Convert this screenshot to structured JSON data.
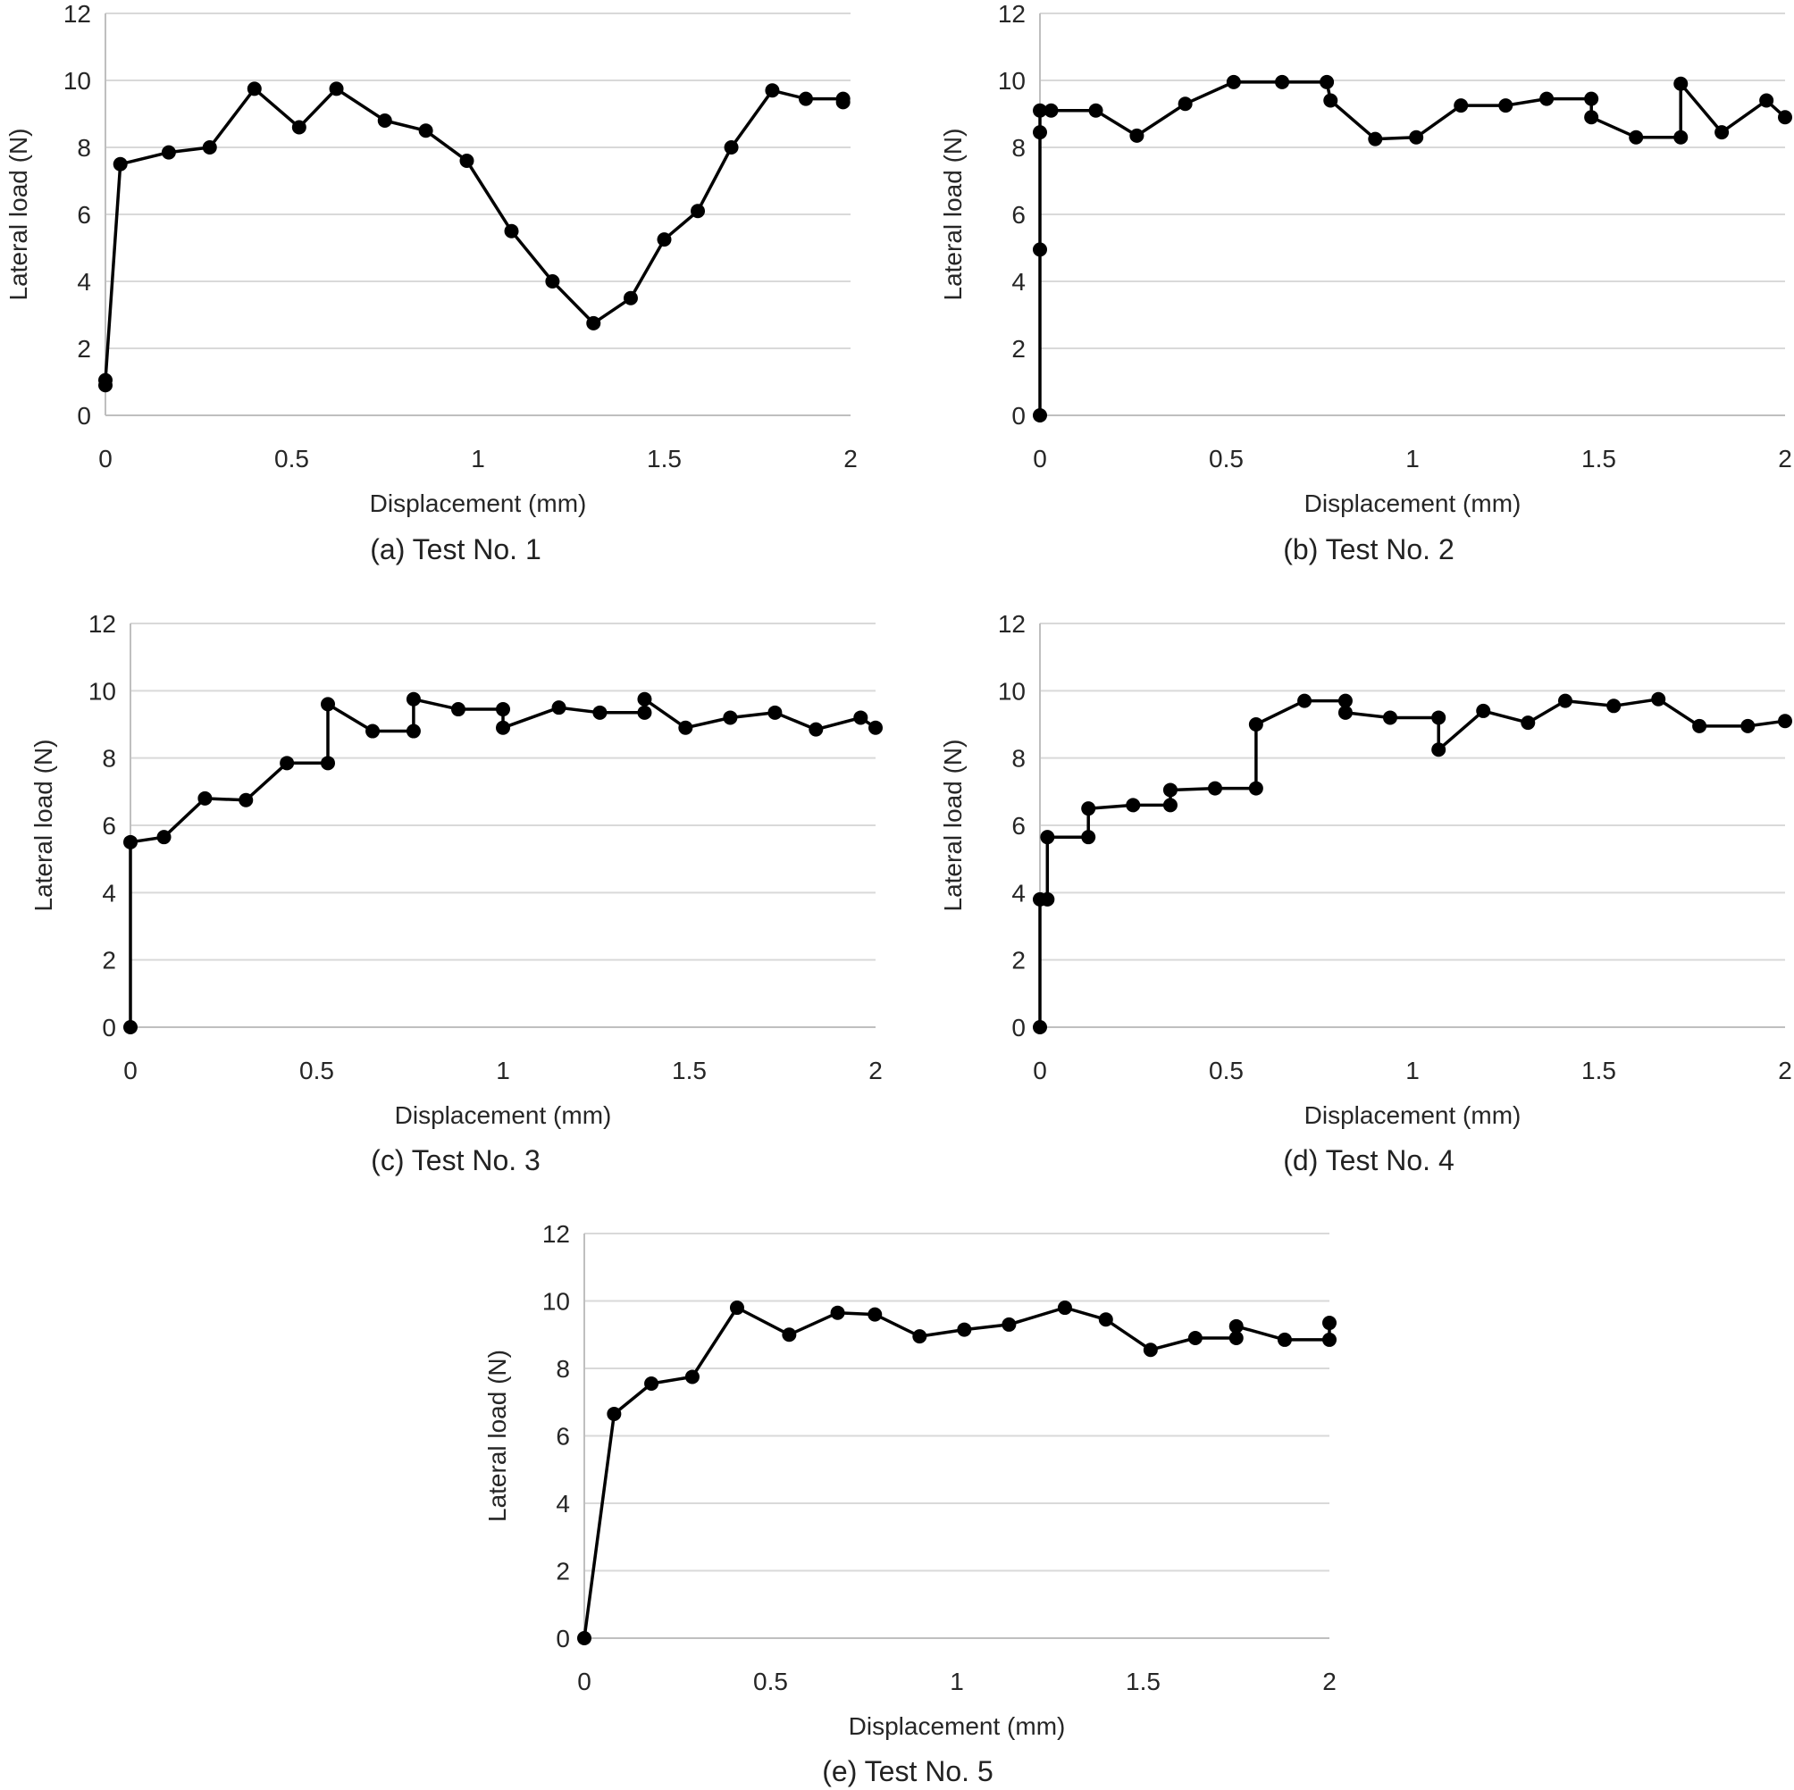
{
  "chart_data": [
    {
      "type": "scatter",
      "caption": "(a) Test No. 1",
      "xlabel": "Displacement (mm)",
      "ylabel": "Lateral load (N)",
      "xlim": [
        0,
        2
      ],
      "ylim": [
        0,
        12
      ],
      "xticks": [
        "0",
        "0.5",
        "1",
        "1.5",
        "2"
      ],
      "yticks": [
        "0",
        "2",
        "4",
        "6",
        "8",
        "10",
        "12"
      ],
      "grid": true,
      "points": [
        [
          0,
          0.9
        ],
        [
          0,
          1.05
        ],
        [
          0.04,
          7.5
        ],
        [
          0.17,
          7.85
        ],
        [
          0.28,
          8.0
        ],
        [
          0.4,
          9.75
        ],
        [
          0.52,
          8.6
        ],
        [
          0.62,
          9.75
        ],
        [
          0.75,
          8.8
        ],
        [
          0.86,
          8.5
        ],
        [
          0.97,
          7.6
        ],
        [
          1.09,
          5.5
        ],
        [
          1.2,
          4.0
        ],
        [
          1.31,
          2.75
        ],
        [
          1.41,
          3.5
        ],
        [
          1.5,
          5.25
        ],
        [
          1.59,
          6.1
        ],
        [
          1.68,
          8.0
        ],
        [
          1.79,
          9.7
        ],
        [
          1.88,
          9.45
        ],
        [
          1.98,
          9.45
        ],
        [
          1.98,
          9.35
        ]
      ]
    },
    {
      "type": "scatter",
      "caption": "(b) Test No. 2",
      "xlabel": "Displacement (mm)",
      "ylabel": "Lateral load (N)",
      "xlim": [
        0,
        2
      ],
      "ylim": [
        0,
        12
      ],
      "xticks": [
        "0",
        "0.5",
        "1",
        "1.5",
        "2"
      ],
      "yticks": [
        "0",
        "2",
        "4",
        "6",
        "8",
        "10",
        "12"
      ],
      "grid": true,
      "points": [
        [
          0,
          0
        ],
        [
          0,
          4.95
        ],
        [
          0,
          8.45
        ],
        [
          0,
          9.1
        ],
        [
          0.03,
          9.1
        ],
        [
          0.15,
          9.1
        ],
        [
          0.26,
          8.35
        ],
        [
          0.39,
          9.3
        ],
        [
          0.52,
          9.95
        ],
        [
          0.65,
          9.95
        ],
        [
          0.77,
          9.95
        ],
        [
          0.78,
          9.4
        ],
        [
          0.9,
          8.25
        ],
        [
          1.01,
          8.3
        ],
        [
          1.13,
          9.25
        ],
        [
          1.25,
          9.25
        ],
        [
          1.36,
          9.45
        ],
        [
          1.48,
          9.45
        ],
        [
          1.48,
          8.9
        ],
        [
          1.6,
          8.3
        ],
        [
          1.72,
          8.3
        ],
        [
          1.72,
          9.9
        ],
        [
          1.83,
          8.45
        ],
        [
          1.95,
          9.4
        ],
        [
          2.0,
          8.9
        ]
      ]
    },
    {
      "type": "scatter",
      "caption": "(c) Test No. 3",
      "xlabel": "Displacement (mm)",
      "ylabel": "Lateral load (N)",
      "xlim": [
        0,
        2
      ],
      "ylim": [
        0,
        12
      ],
      "xticks": [
        "0",
        "0.5",
        "1",
        "1.5",
        "2"
      ],
      "yticks": [
        "0",
        "2",
        "4",
        "6",
        "8",
        "10",
        "12"
      ],
      "grid": true,
      "points": [
        [
          0,
          0
        ],
        [
          0,
          5.5
        ],
        [
          0.09,
          5.65
        ],
        [
          0.2,
          6.8
        ],
        [
          0.31,
          6.75
        ],
        [
          0.42,
          7.85
        ],
        [
          0.53,
          7.85
        ],
        [
          0.53,
          9.6
        ],
        [
          0.65,
          8.8
        ],
        [
          0.76,
          8.8
        ],
        [
          0.76,
          9.75
        ],
        [
          0.88,
          9.45
        ],
        [
          1.0,
          9.45
        ],
        [
          1.0,
          8.9
        ],
        [
          1.15,
          9.5
        ],
        [
          1.26,
          9.35
        ],
        [
          1.38,
          9.35
        ],
        [
          1.38,
          9.75
        ],
        [
          1.49,
          8.9
        ],
        [
          1.61,
          9.2
        ],
        [
          1.73,
          9.35
        ],
        [
          1.84,
          8.85
        ],
        [
          1.96,
          9.2
        ],
        [
          2.0,
          8.9
        ]
      ]
    },
    {
      "type": "scatter",
      "caption": "(d) Test No. 4",
      "xlabel": "Displacement (mm)",
      "ylabel": "Lateral load (N)",
      "xlim": [
        0,
        2
      ],
      "ylim": [
        0,
        12
      ],
      "xticks": [
        "0",
        "0.5",
        "1",
        "1.5",
        "2"
      ],
      "yticks": [
        "0",
        "2",
        "4",
        "6",
        "8",
        "10",
        "12"
      ],
      "grid": true,
      "points": [
        [
          0,
          0
        ],
        [
          0,
          3.8
        ],
        [
          0.02,
          3.8
        ],
        [
          0.02,
          5.65
        ],
        [
          0.13,
          5.65
        ],
        [
          0.13,
          6.5
        ],
        [
          0.25,
          6.6
        ],
        [
          0.35,
          6.6
        ],
        [
          0.35,
          7.05
        ],
        [
          0.47,
          7.1
        ],
        [
          0.58,
          7.1
        ],
        [
          0.58,
          9.0
        ],
        [
          0.71,
          9.7
        ],
        [
          0.82,
          9.7
        ],
        [
          0.82,
          9.35
        ],
        [
          0.94,
          9.2
        ],
        [
          1.07,
          9.2
        ],
        [
          1.07,
          8.25
        ],
        [
          1.19,
          9.4
        ],
        [
          1.31,
          9.05
        ],
        [
          1.41,
          9.7
        ],
        [
          1.54,
          9.55
        ],
        [
          1.66,
          9.75
        ],
        [
          1.77,
          8.95
        ],
        [
          1.9,
          8.95
        ],
        [
          2.0,
          9.1
        ]
      ]
    },
    {
      "type": "scatter",
      "caption": "(e) Test No. 5",
      "xlabel": "Displacement (mm)",
      "ylabel": "Lateral load (N)",
      "xlim": [
        0,
        2
      ],
      "ylim": [
        0,
        12
      ],
      "xticks": [
        "0",
        "0.5",
        "1",
        "1.5",
        "2"
      ],
      "yticks": [
        "0",
        "2",
        "4",
        "6",
        "8",
        "10",
        "12"
      ],
      "grid": true,
      "points": [
        [
          0,
          0
        ],
        [
          0.08,
          6.65
        ],
        [
          0.18,
          7.55
        ],
        [
          0.29,
          7.75
        ],
        [
          0.41,
          9.8
        ],
        [
          0.55,
          9.0
        ],
        [
          0.68,
          9.65
        ],
        [
          0.78,
          9.6
        ],
        [
          0.9,
          8.95
        ],
        [
          1.02,
          9.15
        ],
        [
          1.14,
          9.3
        ],
        [
          1.29,
          9.8
        ],
        [
          1.4,
          9.45
        ],
        [
          1.52,
          8.55
        ],
        [
          1.64,
          8.9
        ],
        [
          1.75,
          8.9
        ],
        [
          1.75,
          9.25
        ],
        [
          1.88,
          8.85
        ],
        [
          2.0,
          8.85
        ],
        [
          2.0,
          9.35
        ]
      ]
    }
  ]
}
